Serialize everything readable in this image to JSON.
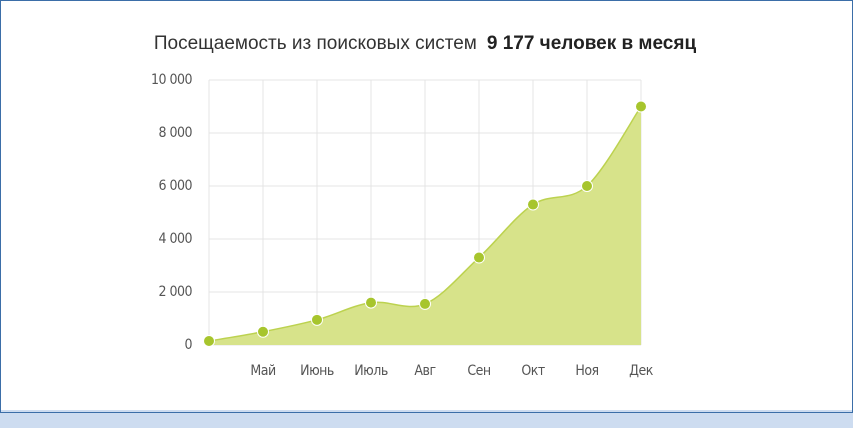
{
  "chart_data": {
    "type": "area",
    "title": "Посещаемость из поисковых систем",
    "subtitle": "9 177 человек в месяц",
    "categories": [
      null,
      "Май",
      "Июнь",
      "Июль",
      "Авг",
      "Сен",
      "Окт",
      "Ноя",
      "Дек"
    ],
    "values": [
      150,
      500,
      950,
      1600,
      1550,
      3300,
      5300,
      6000,
      9000
    ],
    "color": "#d7e38a",
    "line_color": "#bcd24f",
    "marker_color": "#a7c52d",
    "ylim": [
      0,
      10000
    ],
    "yticks": [
      0,
      {
        "value": 2000,
        "label": "2 000"
      },
      {
        "value": 4000,
        "label": "4 000"
      },
      {
        "value": 6000,
        "label": "6 000"
      },
      {
        "value": 8000,
        "label": "8 000"
      },
      {
        "value": 10000,
        "label": "10 000"
      }
    ],
    "grid": true
  }
}
